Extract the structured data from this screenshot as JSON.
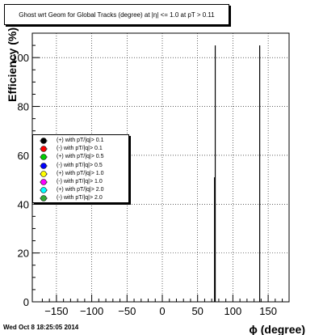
{
  "title": "Ghost wrt Geom for Global Tracks (degree) at |η| <= 1.0 at pT > 0.11",
  "footer": "Wed Oct  8 18:25:05 2014",
  "chart_data": {
    "type": "bar",
    "xlabel": "ϕ (degree)",
    "ylabel": "Efficiency (%)",
    "xlim": [
      -180,
      180
    ],
    "ylim": [
      0,
      110
    ],
    "x_ticks": [
      -150,
      -100,
      -50,
      0,
      50,
      100,
      150
    ],
    "x_tick_labels": [
      "−150",
      "−100",
      "−50",
      "0",
      "50",
      "100",
      "150"
    ],
    "y_ticks": [
      0,
      20,
      40,
      60,
      80,
      100
    ],
    "y_tick_labels": [
      "0",
      "20",
      "40",
      "60",
      "80",
      "100"
    ],
    "grid": true,
    "legend_position": "left-middle",
    "series": [
      {
        "name": "(+) with pT/|q|> 0.1",
        "color": "#000000",
        "x": [
          75,
          138
        ],
        "values": [
          105,
          105
        ]
      },
      {
        "name": "(-) with pT/|q|> 0.1",
        "color": "#ff0000",
        "x": [],
        "values": []
      },
      {
        "name": "(+) with pT/|q|> 0.5",
        "color": "#00cc00",
        "x": [],
        "values": []
      },
      {
        "name": "(-) with pT/|q|> 0.5",
        "color": "#0000ff",
        "x": [],
        "values": []
      },
      {
        "name": "(+) with pT/|q|> 1.0",
        "color": "#ffff00",
        "x": [],
        "values": []
      },
      {
        "name": "(-) with pT/|q|> 1.0",
        "color": "#ff00ff",
        "x": [],
        "values": []
      },
      {
        "name": "(+) with pT/|q|> 2.0",
        "color": "#00ffff",
        "x": [],
        "values": []
      },
      {
        "name": "(-) with pT/|q|> 2.0",
        "color": "#33aa33",
        "x": [
          74
        ],
        "values": [
          51
        ]
      }
    ]
  }
}
